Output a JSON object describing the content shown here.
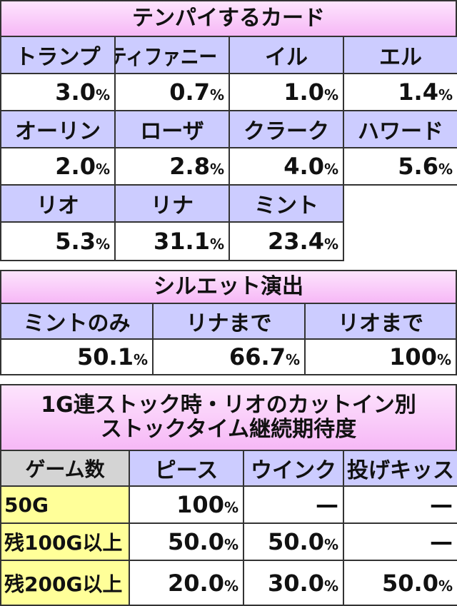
{
  "tenpai": {
    "title": "テンパイするカード",
    "cards": [
      {
        "name": "トランプ",
        "rate": "3.0%"
      },
      {
        "name": "ティファニー",
        "rate": "0.7%"
      },
      {
        "name": "イル",
        "rate": "1.0%"
      },
      {
        "name": "エル",
        "rate": "1.4%"
      },
      {
        "name": "オーリン",
        "rate": "2.0%"
      },
      {
        "name": "ローザ",
        "rate": "2.8%"
      },
      {
        "name": "クラーク",
        "rate": "4.0%"
      },
      {
        "name": "ハワード",
        "rate": "5.6%"
      },
      {
        "name": "リオ",
        "rate": "5.3%"
      },
      {
        "name": "リナ",
        "rate": "31.1%"
      },
      {
        "name": "ミント",
        "rate": "23.4%"
      }
    ]
  },
  "silhouette": {
    "title": "シルエット演出",
    "columns": [
      "ミントのみ",
      "リナまで",
      "リオまで"
    ],
    "values": [
      "50.1%",
      "66.7%",
      "100%"
    ]
  },
  "stock": {
    "title": [
      "1G連ストック時・リオのカットイン別",
      "ストックタイム継続期待度"
    ],
    "headers": [
      "ゲーム数",
      "ピース",
      "ウインク",
      "投げキッス"
    ],
    "rows": [
      [
        "50G",
        "100%",
        "—",
        "—"
      ],
      [
        "残100G以上",
        "50.0%",
        "50.0%",
        "—"
      ],
      [
        "残200G以上",
        "20.0%",
        "30.0%",
        "50.0%"
      ]
    ]
  }
}
